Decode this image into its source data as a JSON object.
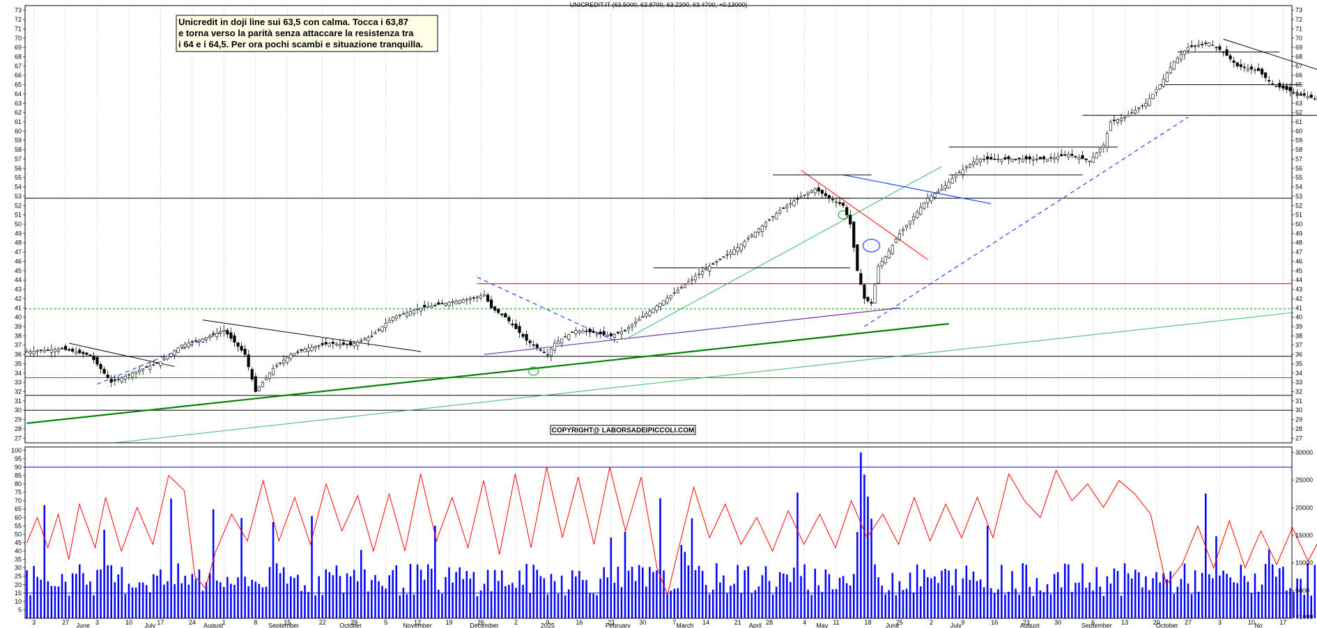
{
  "chart_data": {
    "type": "line",
    "title": "UNICREDIT.IT (63.5000, 63.8700, 63.2200, 63.4700, +0.13000)",
    "annotation": [
      "Unicredit in doji line sui 63,5 con calma. Tocca i 63,87",
      "e torna verso la parità senza attaccare la resistenza tra",
      "i 64 e i 64,5.  Per ora pochi scambi e situazione tranquilla."
    ],
    "copyright": "COPYRIGHT@ LABORSADEIPICCOLI.COM",
    "price_axis": {
      "ylim": [
        26.5,
        73.5
      ],
      "ticks": [
        27,
        28,
        29,
        30,
        31,
        32,
        33,
        34,
        35,
        36,
        37,
        38,
        39,
        40,
        41,
        42,
        43,
        44,
        45,
        46,
        47,
        48,
        49,
        50,
        51,
        52,
        53,
        54,
        55,
        56,
        57,
        58,
        59,
        60,
        61,
        62,
        63,
        64,
        65,
        66,
        67,
        68,
        69,
        70,
        71,
        72,
        73
      ]
    },
    "oscillator_axis": {
      "ylim": [
        0,
        102
      ],
      "ticks": [
        5,
        10,
        15,
        20,
        25,
        30,
        35,
        40,
        45,
        50,
        55,
        60,
        65,
        70,
        75,
        80,
        85,
        90,
        95,
        100
      ]
    },
    "volume_axis": {
      "ylim": [
        0,
        31000
      ],
      "ticks": [
        5000,
        10000,
        15000,
        20000,
        25000,
        30000
      ],
      "unit_label": "x1000"
    },
    "x_axis": {
      "n_bars": 360,
      "day_ticks": [
        {
          "bar": 2,
          "label": "3"
        },
        {
          "bar": 11,
          "label": "27"
        },
        {
          "bar": 20,
          "label": "3"
        },
        {
          "bar": 29,
          "label": "10"
        },
        {
          "bar": 38,
          "label": "17"
        },
        {
          "bar": 47,
          "label": "24"
        },
        {
          "bar": 56,
          "label": "1"
        },
        {
          "bar": 65,
          "label": "8"
        },
        {
          "bar": 74,
          "label": "15"
        },
        {
          "bar": 84,
          "label": "22"
        },
        {
          "bar": 93,
          "label": "29"
        },
        {
          "bar": 102,
          "label": "5"
        },
        {
          "bar": 111,
          "label": "12"
        },
        {
          "bar": 120,
          "label": "19"
        },
        {
          "bar": 129,
          "label": "26"
        },
        {
          "bar": 139,
          "label": "2"
        },
        {
          "bar": 148,
          "label": "9"
        },
        {
          "bar": 157,
          "label": "16"
        },
        {
          "bar": 166,
          "label": "23"
        },
        {
          "bar": 175,
          "label": "30"
        },
        {
          "bar": 184,
          "label": "7"
        },
        {
          "bar": 193,
          "label": "14"
        },
        {
          "bar": 202,
          "label": "21"
        },
        {
          "bar": 211,
          "label": "28"
        },
        {
          "bar": 221,
          "label": "4"
        },
        {
          "bar": 230,
          "label": "11"
        },
        {
          "bar": 239,
          "label": "18"
        },
        {
          "bar": 248,
          "label": "25"
        },
        {
          "bar": 257,
          "label": "2"
        },
        {
          "bar": 266,
          "label": "9"
        },
        {
          "bar": 275,
          "label": "16"
        },
        {
          "bar": 284,
          "label": "23"
        },
        {
          "bar": 293,
          "label": "30"
        },
        {
          "bar": 303,
          "label": "6"
        },
        {
          "bar": 312,
          "label": "13"
        },
        {
          "bar": 321,
          "label": "20"
        },
        {
          "bar": 330,
          "label": "27"
        },
        {
          "bar": 339,
          "label": "3"
        },
        {
          "bar": 348,
          "label": "10"
        },
        {
          "bar": 357,
          "label": "17"
        }
      ],
      "month_labels": [
        {
          "bar": 16,
          "label": "June"
        },
        {
          "bar": 35,
          "label": "July"
        },
        {
          "bar": 53,
          "label": "August"
        },
        {
          "bar": 73,
          "label": "September"
        },
        {
          "bar": 92,
          "label": "October"
        },
        {
          "bar": 111,
          "label": "November"
        },
        {
          "bar": 130,
          "label": "December"
        },
        {
          "bar": 148,
          "label": "2025"
        },
        {
          "bar": 168,
          "label": "February"
        },
        {
          "bar": 187,
          "label": "March"
        },
        {
          "bar": 207,
          "label": "April"
        },
        {
          "bar": 226,
          "label": "May"
        },
        {
          "bar": 246,
          "label": "June"
        },
        {
          "bar": 264,
          "label": "July"
        },
        {
          "bar": 285,
          "label": "August"
        },
        {
          "bar": 304,
          "label": "September"
        },
        {
          "bar": 324,
          "label": "October"
        },
        {
          "bar": 350,
          "label": "No"
        }
      ]
    },
    "price_path": [
      [
        0,
        36.3
      ],
      [
        10,
        36.6
      ],
      [
        18,
        35.9
      ],
      [
        24,
        33.0
      ],
      [
        30,
        34.0
      ],
      [
        38,
        35.2
      ],
      [
        44,
        37.0
      ],
      [
        50,
        37.7
      ],
      [
        56,
        38.6
      ],
      [
        62,
        36.0
      ],
      [
        65,
        32.0
      ],
      [
        70,
        34.5
      ],
      [
        75,
        36.0
      ],
      [
        80,
        36.7
      ],
      [
        86,
        37.2
      ],
      [
        92,
        37.0
      ],
      [
        98,
        38.0
      ],
      [
        104,
        40.0
      ],
      [
        112,
        41.0
      ],
      [
        120,
        41.6
      ],
      [
        126,
        42.0
      ],
      [
        130,
        42.4
      ],
      [
        132,
        41.0
      ],
      [
        136,
        40.0
      ],
      [
        142,
        37.5
      ],
      [
        148,
        36.0
      ],
      [
        150,
        37.2
      ],
      [
        156,
        38.6
      ],
      [
        160,
        38.4
      ],
      [
        166,
        38.0
      ],
      [
        170,
        38.6
      ],
      [
        174,
        39.8
      ],
      [
        180,
        41.5
      ],
      [
        186,
        43.2
      ],
      [
        190,
        44.4
      ],
      [
        196,
        46.0
      ],
      [
        202,
        47.5
      ],
      [
        208,
        49.5
      ],
      [
        214,
        51.5
      ],
      [
        218,
        52.5
      ],
      [
        224,
        53.8
      ],
      [
        228,
        52.8
      ],
      [
        232,
        52.0
      ],
      [
        234,
        50.0
      ],
      [
        236,
        45.0
      ],
      [
        238,
        42.0
      ],
      [
        240,
        41.5
      ],
      [
        242,
        45.5
      ],
      [
        244,
        46.5
      ],
      [
        248,
        49.0
      ],
      [
        252,
        50.8
      ],
      [
        256,
        52.8
      ],
      [
        260,
        53.8
      ],
      [
        264,
        55.3
      ],
      [
        270,
        57.0
      ],
      [
        280,
        57.0
      ],
      [
        290,
        57.0
      ],
      [
        296,
        57.5
      ],
      [
        302,
        56.8
      ],
      [
        306,
        58.5
      ],
      [
        308,
        61.0
      ],
      [
        312,
        61.5
      ],
      [
        318,
        63.0
      ],
      [
        322,
        65.0
      ],
      [
        326,
        67.5
      ],
      [
        330,
        69.0
      ],
      [
        336,
        69.5
      ],
      [
        340,
        68.5
      ],
      [
        344,
        67.0
      ],
      [
        350,
        66.5
      ],
      [
        354,
        65.0
      ],
      [
        360,
        64.2
      ],
      [
        366,
        63.5
      ],
      [
        370,
        62.5
      ],
      [
        374,
        62.3
      ],
      [
        378,
        63.0
      ],
      [
        382,
        62.3
      ],
      [
        385,
        63.4
      ]
    ],
    "rsi_path": [
      [
        0,
        45
      ],
      [
        4,
        60
      ],
      [
        8,
        42
      ],
      [
        12,
        62
      ],
      [
        16,
        35
      ],
      [
        20,
        68
      ],
      [
        26,
        42
      ],
      [
        30,
        72
      ],
      [
        36,
        40
      ],
      [
        42,
        66
      ],
      [
        48,
        44
      ],
      [
        54,
        85
      ],
      [
        60,
        76
      ],
      [
        64,
        25
      ],
      [
        68,
        18
      ],
      [
        72,
        40
      ],
      [
        78,
        62
      ],
      [
        84,
        46
      ],
      [
        90,
        82
      ],
      [
        96,
        46
      ],
      [
        102,
        72
      ],
      [
        108,
        44
      ],
      [
        114,
        80
      ],
      [
        120,
        52
      ],
      [
        126,
        73
      ],
      [
        132,
        40
      ],
      [
        138,
        74
      ],
      [
        144,
        40
      ],
      [
        150,
        86
      ],
      [
        156,
        46
      ],
      [
        162,
        72
      ],
      [
        168,
        42
      ],
      [
        174,
        82
      ],
      [
        180,
        38
      ],
      [
        186,
        86
      ],
      [
        192,
        42
      ],
      [
        198,
        90
      ],
      [
        204,
        48
      ],
      [
        210,
        84
      ],
      [
        216,
        44
      ],
      [
        222,
        90
      ],
      [
        228,
        52
      ],
      [
        234,
        84
      ],
      [
        240,
        30
      ],
      [
        244,
        14
      ],
      [
        248,
        40
      ],
      [
        254,
        78
      ],
      [
        260,
        48
      ],
      [
        266,
        68
      ],
      [
        272,
        44
      ],
      [
        278,
        60
      ],
      [
        284,
        40
      ],
      [
        290,
        64
      ],
      [
        296,
        44
      ],
      [
        302,
        62
      ],
      [
        308,
        42
      ],
      [
        314,
        70
      ],
      [
        320,
        48
      ],
      [
        326,
        62
      ],
      [
        332,
        44
      ],
      [
        338,
        72
      ],
      [
        344,
        46
      ],
      [
        350,
        68
      ],
      [
        356,
        48
      ],
      [
        362,
        72
      ],
      [
        368,
        48
      ],
      [
        374,
        86
      ],
      [
        380,
        70
      ],
      [
        386,
        60
      ],
      [
        392,
        88
      ],
      [
        398,
        70
      ],
      [
        404,
        80
      ],
      [
        410,
        66
      ],
      [
        416,
        82
      ],
      [
        422,
        74
      ],
      [
        428,
        62
      ],
      [
        434,
        20
      ],
      [
        440,
        32
      ],
      [
        446,
        55
      ],
      [
        452,
        30
      ],
      [
        458,
        58
      ],
      [
        464,
        30
      ],
      [
        470,
        52
      ],
      [
        476,
        32
      ],
      [
        482,
        54
      ],
      [
        488,
        34
      ],
      [
        494,
        52
      ],
      [
        500,
        38
      ],
      [
        506,
        48
      ],
      [
        512,
        38
      ],
      [
        516,
        54
      ]
    ],
    "levels": {
      "rsi_upper": 90,
      "rsi_lower": 15,
      "price_horizontal_black": [
        30.0,
        31.6,
        35.8,
        52.8
      ],
      "price_horizontal_green": [
        33.5
      ],
      "price_horizontal_green_dotted": [
        40.9
      ],
      "price_horizontal_red": [
        43.6
      ]
    }
  }
}
